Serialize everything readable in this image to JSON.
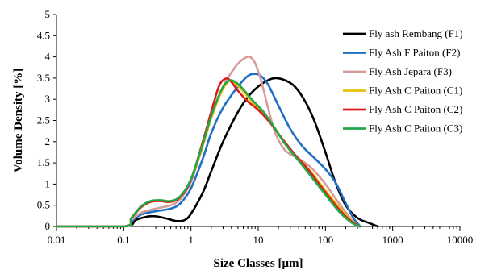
{
  "chart_data": {
    "type": "line",
    "title": "",
    "xlabel": "Size Classes [μm]",
    "ylabel": "Volume Density [%]",
    "x_scale": "log",
    "xlim": [
      0.01,
      10000
    ],
    "ylim": [
      0,
      5
    ],
    "x_ticks": [
      {
        "value": 0.01,
        "label": "0.01"
      },
      {
        "value": 0.1,
        "label": "0.1"
      },
      {
        "value": 1,
        "label": "1"
      },
      {
        "value": 10,
        "label": "10"
      },
      {
        "value": 100,
        "label": "100"
      },
      {
        "value": 1000,
        "label": "1000"
      },
      {
        "value": 10000,
        "label": "10000"
      }
    ],
    "y_ticks": [
      {
        "value": 0,
        "label": "0"
      },
      {
        "value": 0.5,
        "label": "0.5"
      },
      {
        "value": 1,
        "label": "1"
      },
      {
        "value": 1.5,
        "label": "1.5"
      },
      {
        "value": 2,
        "label": "2"
      },
      {
        "value": 2.5,
        "label": "2.5"
      },
      {
        "value": 3,
        "label": "3"
      },
      {
        "value": 3.5,
        "label": "3.5"
      },
      {
        "value": 4,
        "label": "4"
      },
      {
        "value": 4.5,
        "label": "4.5"
      },
      {
        "value": 5,
        "label": "5"
      }
    ],
    "grid": false,
    "legend_position": "top-right",
    "series": [
      {
        "name": "Fly ash Rembang (F1)",
        "color": "#000000",
        "points": [
          [
            0.01,
            0
          ],
          [
            0.1,
            0
          ],
          [
            0.15,
            0.15
          ],
          [
            0.22,
            0.23
          ],
          [
            0.3,
            0.24
          ],
          [
            0.45,
            0.18
          ],
          [
            0.6,
            0.13
          ],
          [
            0.8,
            0.15
          ],
          [
            1,
            0.3
          ],
          [
            1.5,
            0.8
          ],
          [
            2,
            1.3
          ],
          [
            3,
            2.0
          ],
          [
            5,
            2.7
          ],
          [
            7,
            3.05
          ],
          [
            10,
            3.3
          ],
          [
            14,
            3.45
          ],
          [
            18,
            3.5
          ],
          [
            25,
            3.45
          ],
          [
            35,
            3.3
          ],
          [
            50,
            2.95
          ],
          [
            70,
            2.45
          ],
          [
            100,
            1.75
          ],
          [
            140,
            1.05
          ],
          [
            200,
            0.5
          ],
          [
            300,
            0.2
          ],
          [
            450,
            0.08
          ],
          [
            600,
            0
          ]
        ]
      },
      {
        "name": "Fly Ash F Paiton (F2)",
        "color": "#1f6fc5",
        "points": [
          [
            0.01,
            0
          ],
          [
            0.1,
            0
          ],
          [
            0.13,
            0.12
          ],
          [
            0.18,
            0.28
          ],
          [
            0.3,
            0.36
          ],
          [
            0.5,
            0.42
          ],
          [
            0.7,
            0.55
          ],
          [
            1,
            0.9
          ],
          [
            1.5,
            1.6
          ],
          [
            2,
            2.2
          ],
          [
            3,
            2.8
          ],
          [
            5,
            3.3
          ],
          [
            7,
            3.55
          ],
          [
            9,
            3.6
          ],
          [
            11,
            3.55
          ],
          [
            14,
            3.35
          ],
          [
            20,
            2.85
          ],
          [
            30,
            2.3
          ],
          [
            45,
            1.9
          ],
          [
            70,
            1.6
          ],
          [
            100,
            1.35
          ],
          [
            140,
            1.05
          ],
          [
            200,
            0.55
          ],
          [
            260,
            0.2
          ],
          [
            330,
            0
          ]
        ]
      },
      {
        "name": "Fly Ash Jepara (F3)",
        "color": "#d99a9a",
        "points": [
          [
            0.01,
            0
          ],
          [
            0.1,
            0
          ],
          [
            0.13,
            0.15
          ],
          [
            0.18,
            0.32
          ],
          [
            0.3,
            0.42
          ],
          [
            0.5,
            0.5
          ],
          [
            0.7,
            0.65
          ],
          [
            1,
            1.05
          ],
          [
            1.5,
            1.9
          ],
          [
            2,
            2.6
          ],
          [
            3,
            3.3
          ],
          [
            4.5,
            3.75
          ],
          [
            6,
            3.95
          ],
          [
            7.5,
            4.0
          ],
          [
            9,
            3.85
          ],
          [
            11,
            3.45
          ],
          [
            14,
            2.8
          ],
          [
            18,
            2.2
          ],
          [
            25,
            1.8
          ],
          [
            40,
            1.6
          ],
          [
            60,
            1.4
          ],
          [
            100,
            1.0
          ],
          [
            150,
            0.6
          ],
          [
            220,
            0.25
          ],
          [
            300,
            0
          ]
        ]
      },
      {
        "name": "Fly Ash C Paiton (C1)",
        "color": "#e8c30a",
        "points": [
          [
            0.01,
            0
          ],
          [
            0.1,
            0
          ],
          [
            0.13,
            0.2
          ],
          [
            0.18,
            0.45
          ],
          [
            0.25,
            0.58
          ],
          [
            0.35,
            0.6
          ],
          [
            0.5,
            0.58
          ],
          [
            0.7,
            0.7
          ],
          [
            1,
            1.1
          ],
          [
            1.5,
            1.9
          ],
          [
            2,
            2.55
          ],
          [
            2.8,
            3.15
          ],
          [
            3.5,
            3.4
          ],
          [
            4.2,
            3.42
          ],
          [
            5.5,
            3.25
          ],
          [
            8,
            2.95
          ],
          [
            12,
            2.65
          ],
          [
            18,
            2.3
          ],
          [
            25,
            1.95
          ],
          [
            40,
            1.6
          ],
          [
            60,
            1.3
          ],
          [
            100,
            0.85
          ],
          [
            160,
            0.45
          ],
          [
            240,
            0.15
          ],
          [
            320,
            0
          ]
        ]
      },
      {
        "name": "Fly Ash C Paiton (C2)",
        "color": "#e01a1a",
        "points": [
          [
            0.01,
            0
          ],
          [
            0.1,
            0
          ],
          [
            0.13,
            0.2
          ],
          [
            0.18,
            0.45
          ],
          [
            0.25,
            0.58
          ],
          [
            0.35,
            0.6
          ],
          [
            0.5,
            0.58
          ],
          [
            0.7,
            0.7
          ],
          [
            1,
            1.1
          ],
          [
            1.5,
            2.0
          ],
          [
            2,
            2.7
          ],
          [
            2.6,
            3.3
          ],
          [
            3.2,
            3.48
          ],
          [
            3.8,
            3.45
          ],
          [
            5,
            3.2
          ],
          [
            7,
            2.95
          ],
          [
            10,
            2.75
          ],
          [
            15,
            2.45
          ],
          [
            22,
            2.1
          ],
          [
            35,
            1.7
          ],
          [
            55,
            1.35
          ],
          [
            90,
            0.9
          ],
          [
            150,
            0.45
          ],
          [
            230,
            0.15
          ],
          [
            320,
            0
          ]
        ]
      },
      {
        "name": "Fly Ash C Paiton (C3)",
        "color": "#22a84a",
        "points": [
          [
            0.01,
            0
          ],
          [
            0.1,
            0
          ],
          [
            0.13,
            0.2
          ],
          [
            0.18,
            0.47
          ],
          [
            0.25,
            0.6
          ],
          [
            0.35,
            0.62
          ],
          [
            0.5,
            0.6
          ],
          [
            0.7,
            0.72
          ],
          [
            1,
            1.12
          ],
          [
            1.5,
            1.95
          ],
          [
            2,
            2.6
          ],
          [
            2.8,
            3.2
          ],
          [
            3.5,
            3.42
          ],
          [
            4.2,
            3.44
          ],
          [
            5.5,
            3.3
          ],
          [
            8,
            3.0
          ],
          [
            12,
            2.7
          ],
          [
            18,
            2.3
          ],
          [
            25,
            1.95
          ],
          [
            40,
            1.55
          ],
          [
            60,
            1.2
          ],
          [
            100,
            0.75
          ],
          [
            160,
            0.35
          ],
          [
            240,
            0.1
          ],
          [
            320,
            0
          ]
        ]
      }
    ]
  }
}
